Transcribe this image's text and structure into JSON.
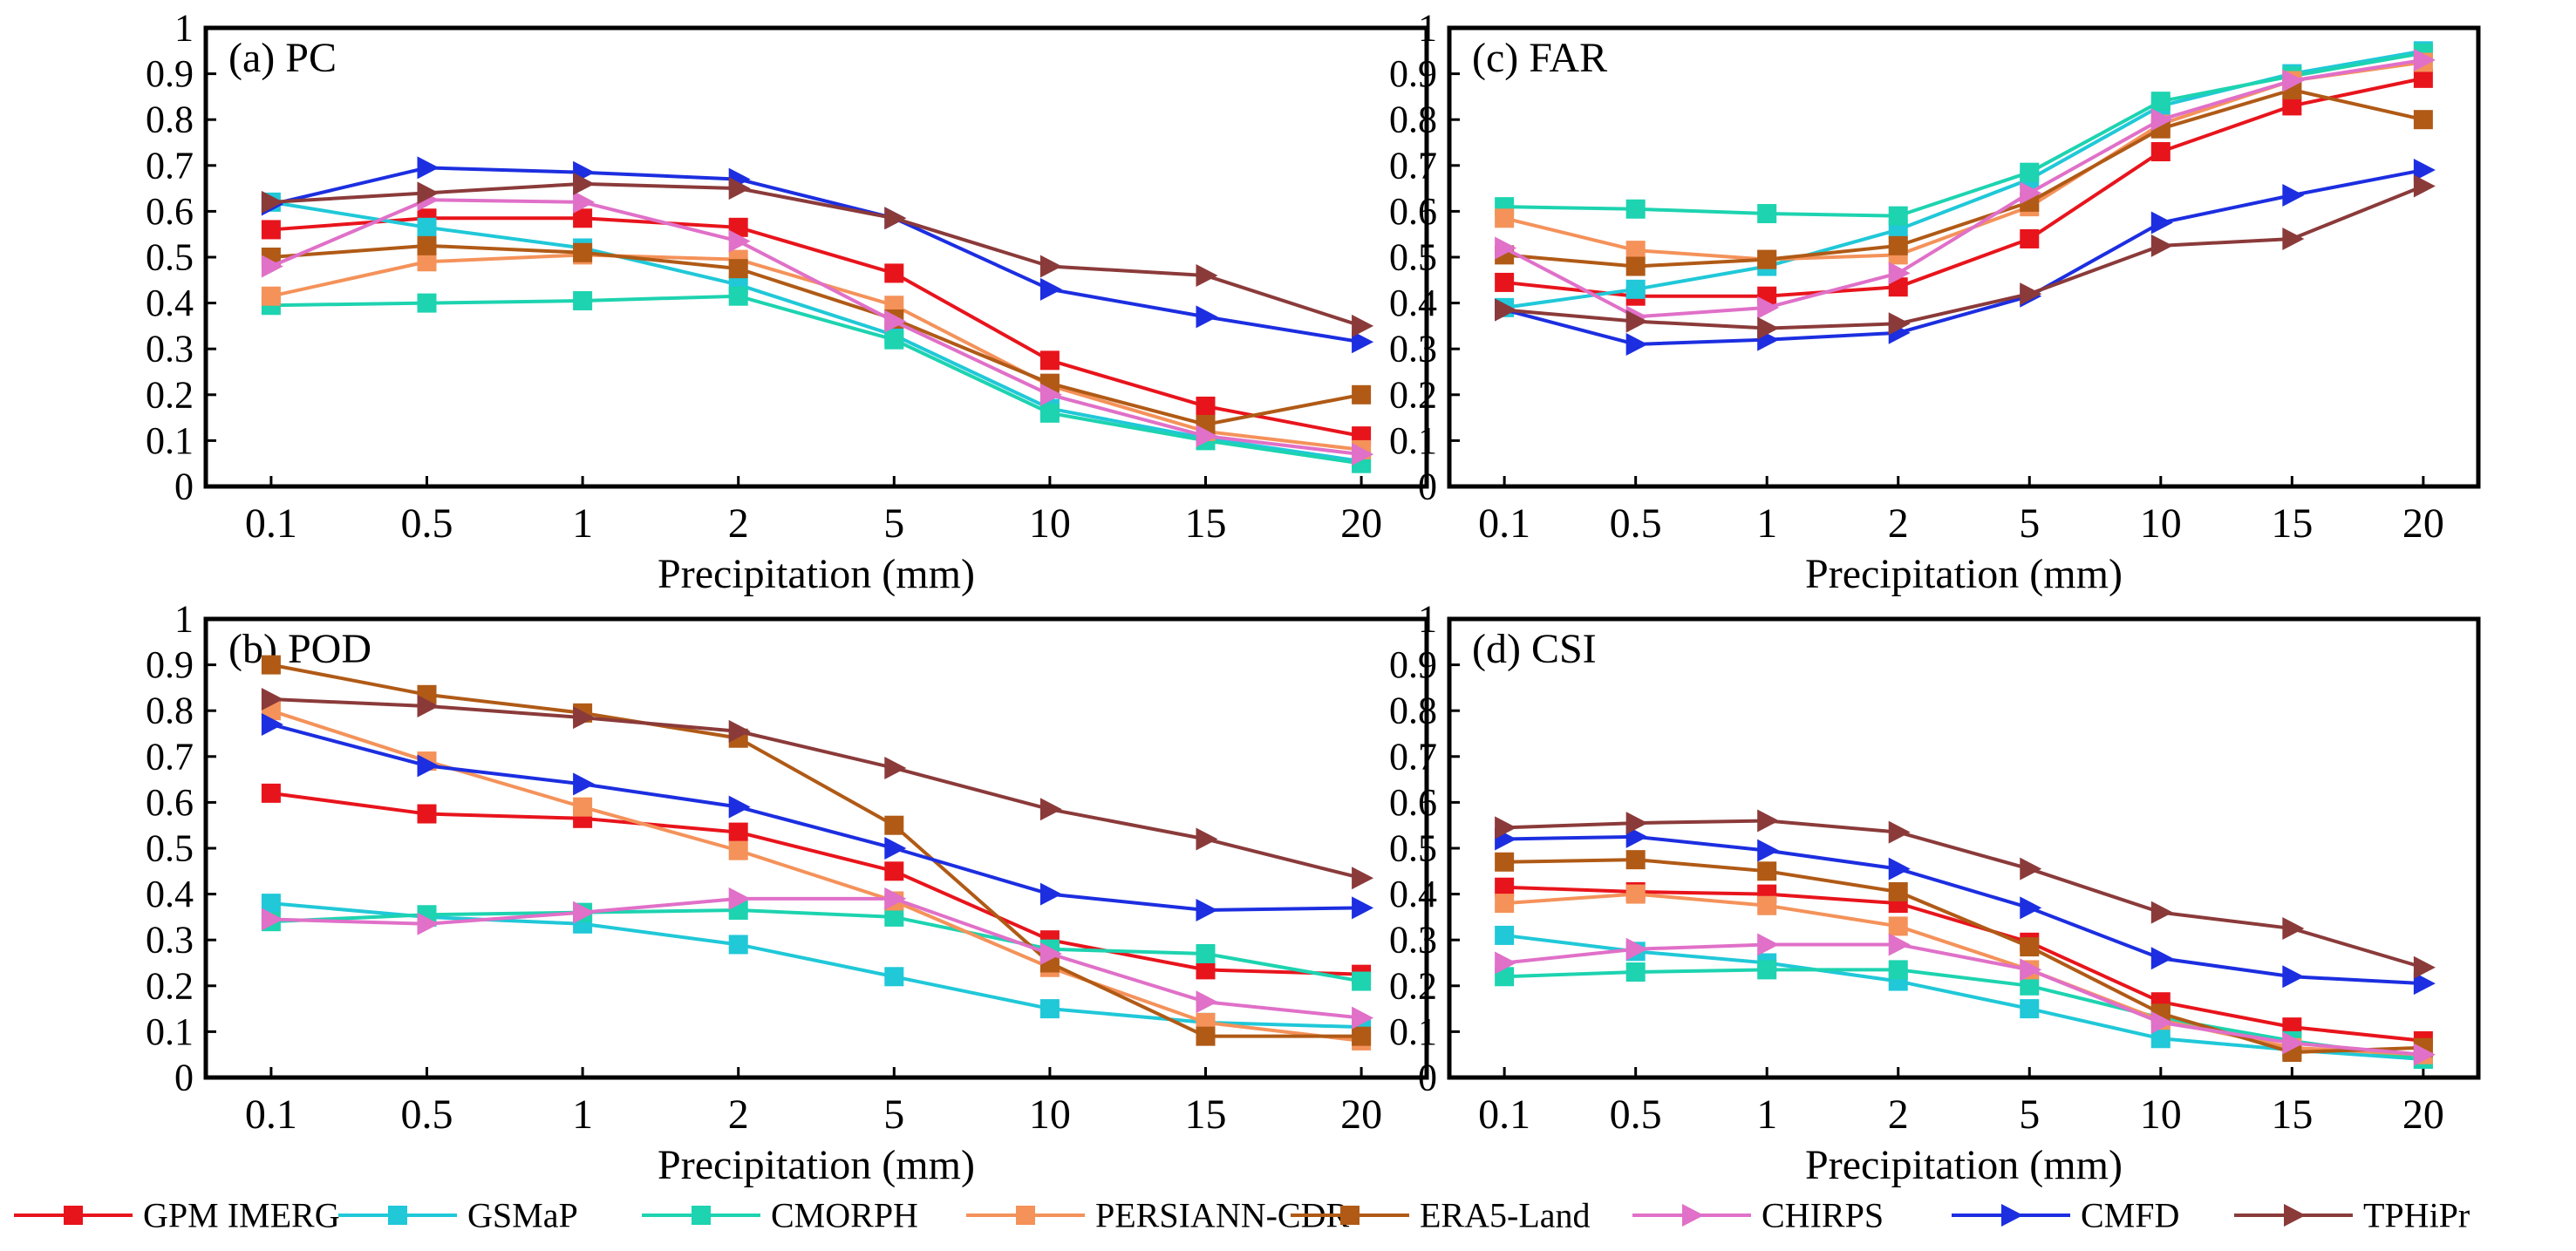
{
  "chart_data": {
    "type": "line",
    "xlabel": "Precipitation (mm)",
    "x_categories": [
      "0.1",
      "0.5",
      "1",
      "2",
      "5",
      "10",
      "15",
      "20"
    ],
    "y_ticks": [
      "0",
      "0.1",
      "0.2",
      "0.3",
      "0.4",
      "0.5",
      "0.6",
      "0.7",
      "0.8",
      "0.9",
      "1"
    ],
    "ylim": [
      0,
      1
    ],
    "legend_position": "bottom",
    "series_meta": [
      {
        "name": "GPM IMERG",
        "color": "#e8141c",
        "marker": "square"
      },
      {
        "name": "GSMaP",
        "color": "#20c8d8",
        "marker": "square"
      },
      {
        "name": "CMORPH",
        "color": "#1dd3b0",
        "marker": "square"
      },
      {
        "name": "PERSIANN-CDR",
        "color": "#f4925a",
        "marker": "square"
      },
      {
        "name": "ERA5-Land",
        "color": "#b05a16",
        "marker": "square"
      },
      {
        "name": "CHIRPS",
        "color": "#e070c8",
        "marker": "triangle-right"
      },
      {
        "name": "CMFD",
        "color": "#1c2ee0",
        "marker": "triangle-right"
      },
      {
        "name": "TPHiPr",
        "color": "#8b3a3a",
        "marker": "triangle-right"
      }
    ],
    "panels": [
      {
        "title": "(a) PC",
        "series": [
          {
            "name": "GPM IMERG",
            "values": [
              0.56,
              0.585,
              0.585,
              0.565,
              0.465,
              0.275,
              0.175,
              0.11
            ]
          },
          {
            "name": "GSMaP",
            "values": [
              0.62,
              0.565,
              0.52,
              0.44,
              0.33,
              0.17,
              0.105,
              0.055
            ]
          },
          {
            "name": "CMORPH",
            "values": [
              0.395,
              0.4,
              0.405,
              0.415,
              0.32,
              0.16,
              0.1,
              0.05
            ]
          },
          {
            "name": "PERSIANN-CDR",
            "values": [
              0.415,
              0.49,
              0.505,
              0.495,
              0.395,
              0.22,
              0.12,
              0.08
            ]
          },
          {
            "name": "ERA5-Land",
            "values": [
              0.5,
              0.525,
              0.51,
              0.475,
              0.365,
              0.225,
              0.135,
              0.2
            ]
          },
          {
            "name": "CHIRPS",
            "values": [
              0.48,
              0.625,
              0.62,
              0.535,
              0.36,
              0.2,
              0.11,
              0.07
            ]
          },
          {
            "name": "CMFD",
            "values": [
              0.615,
              0.695,
              0.685,
              0.67,
              0.585,
              0.43,
              0.37,
              0.315
            ]
          },
          {
            "name": "TPHiPr",
            "values": [
              0.62,
              0.64,
              0.66,
              0.65,
              0.585,
              0.48,
              0.46,
              0.35
            ]
          }
        ]
      },
      {
        "title": "(c) FAR",
        "series": [
          {
            "name": "GPM IMERG",
            "values": [
              0.445,
              0.415,
              0.415,
              0.435,
              0.54,
              0.73,
              0.83,
              0.89
            ]
          },
          {
            "name": "GSMaP",
            "values": [
              0.39,
              0.43,
              0.48,
              0.56,
              0.67,
              0.83,
              0.9,
              0.95
            ]
          },
          {
            "name": "CMORPH",
            "values": [
              0.61,
              0.605,
              0.595,
              0.59,
              0.685,
              0.84,
              0.895,
              0.945
            ]
          },
          {
            "name": "PERSIANN-CDR",
            "values": [
              0.585,
              0.515,
              0.495,
              0.505,
              0.61,
              0.79,
              0.885,
              0.925
            ]
          },
          {
            "name": "ERA5-Land",
            "values": [
              0.505,
              0.48,
              0.495,
              0.525,
              0.62,
              0.78,
              0.865,
              0.8
            ]
          },
          {
            "name": "CHIRPS",
            "values": [
              0.52,
              0.37,
              0.39,
              0.465,
              0.64,
              0.8,
              0.885,
              0.93
            ]
          },
          {
            "name": "CMFD",
            "values": [
              0.385,
              0.31,
              0.32,
              0.335,
              0.415,
              0.575,
              0.635,
              0.69
            ]
          },
          {
            "name": "TPHiPr",
            "values": [
              0.385,
              0.36,
              0.345,
              0.355,
              0.42,
              0.525,
              0.54,
              0.655
            ]
          }
        ]
      },
      {
        "title": "(b) POD",
        "series": [
          {
            "name": "GPM IMERG",
            "values": [
              0.62,
              0.575,
              0.565,
              0.535,
              0.45,
              0.3,
              0.235,
              0.225
            ]
          },
          {
            "name": "GSMaP",
            "values": [
              0.38,
              0.35,
              0.335,
              0.29,
              0.22,
              0.15,
              0.12,
              0.11
            ]
          },
          {
            "name": "CMORPH",
            "values": [
              0.34,
              0.355,
              0.36,
              0.365,
              0.35,
              0.28,
              0.27,
              0.21
            ]
          },
          {
            "name": "PERSIANN-CDR",
            "values": [
              0.8,
              0.69,
              0.59,
              0.495,
              0.385,
              0.24,
              0.12,
              0.08
            ]
          },
          {
            "name": "ERA5-Land",
            "values": [
              0.9,
              0.835,
              0.795,
              0.74,
              0.55,
              0.25,
              0.09,
              0.09
            ]
          },
          {
            "name": "CHIRPS",
            "values": [
              0.345,
              0.335,
              0.36,
              0.39,
              0.39,
              0.27,
              0.165,
              0.13
            ]
          },
          {
            "name": "CMFD",
            "values": [
              0.77,
              0.68,
              0.64,
              0.59,
              0.5,
              0.4,
              0.365,
              0.37
            ]
          },
          {
            "name": "TPHiPr",
            "values": [
              0.825,
              0.81,
              0.785,
              0.755,
              0.675,
              0.585,
              0.52,
              0.435
            ]
          }
        ]
      },
      {
        "title": "(d) CSI",
        "series": [
          {
            "name": "GPM IMERG",
            "values": [
              0.415,
              0.405,
              0.4,
              0.38,
              0.295,
              0.165,
              0.11,
              0.08
            ]
          },
          {
            "name": "GSMaP",
            "values": [
              0.31,
              0.275,
              0.25,
              0.21,
              0.15,
              0.085,
              0.06,
              0.04
            ]
          },
          {
            "name": "CMORPH",
            "values": [
              0.22,
              0.23,
              0.235,
              0.235,
              0.2,
              0.13,
              0.08,
              0.04
            ]
          },
          {
            "name": "PERSIANN-CDR",
            "values": [
              0.38,
              0.4,
              0.375,
              0.33,
              0.235,
              0.125,
              0.065,
              0.05
            ]
          },
          {
            "name": "ERA5-Land",
            "values": [
              0.47,
              0.475,
              0.45,
              0.405,
              0.285,
              0.14,
              0.055,
              0.065
            ]
          },
          {
            "name": "CHIRPS",
            "values": [
              0.25,
              0.28,
              0.29,
              0.29,
              0.235,
              0.12,
              0.075,
              0.05
            ]
          },
          {
            "name": "CMFD",
            "values": [
              0.52,
              0.525,
              0.495,
              0.455,
              0.37,
              0.26,
              0.22,
              0.205
            ]
          },
          {
            "name": "TPHiPr",
            "values": [
              0.545,
              0.555,
              0.56,
              0.535,
              0.455,
              0.36,
              0.325,
              0.24
            ]
          }
        ]
      }
    ]
  }
}
